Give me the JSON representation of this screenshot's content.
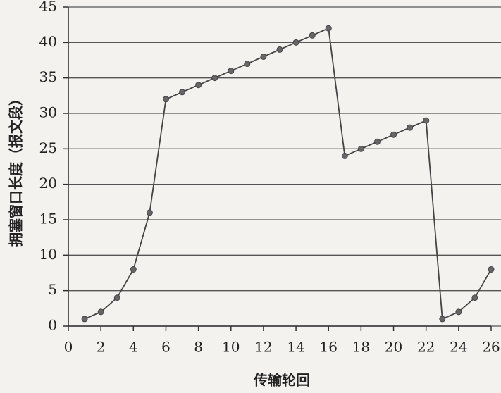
{
  "chart_data": {
    "type": "line",
    "x_label": "传输轮回",
    "y_label": "拥塞窗口长度（报文段）",
    "x": [
      1,
      2,
      3,
      4,
      5,
      6,
      7,
      8,
      9,
      10,
      11,
      12,
      13,
      14,
      15,
      16,
      17,
      18,
      19,
      20,
      21,
      22,
      23,
      24,
      25,
      26
    ],
    "values": [
      1,
      2,
      4,
      8,
      16,
      32,
      33,
      34,
      35,
      36,
      37,
      38,
      39,
      40,
      41,
      42,
      24,
      25,
      26,
      27,
      28,
      29,
      1,
      2,
      4,
      8
    ],
    "color": "#444444",
    "markers": true,
    "xlim": [
      0,
      26
    ],
    "xticks": [
      0,
      2,
      4,
      6,
      8,
      10,
      12,
      14,
      16,
      18,
      20,
      22,
      24,
      26
    ],
    "ylim": [
      0,
      45
    ],
    "yticks": [
      0,
      5,
      10,
      15,
      20,
      25,
      30,
      35,
      40,
      45
    ],
    "grid": true
  }
}
